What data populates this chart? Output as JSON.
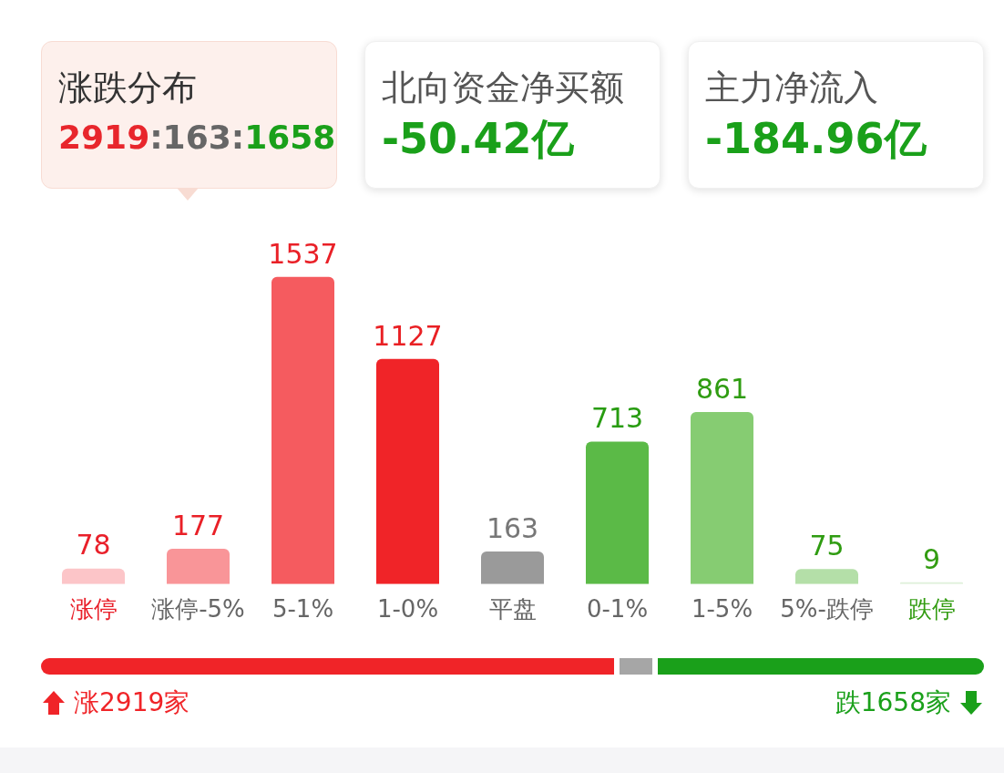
{
  "chart_data": [
    {
      "type": "other",
      "title": "涨跌分布",
      "annotations": [
        "2919:163:1658"
      ]
    },
    {
      "type": "other",
      "title": "北向资金净买额",
      "annotations": [
        "-50.42亿"
      ]
    },
    {
      "type": "other",
      "title": "主力净流入",
      "annotations": [
        "-184.96亿"
      ]
    },
    {
      "type": "bar",
      "categories": [
        "涨停",
        "涨停-5%",
        "5-1%",
        "1-0%",
        "平盘",
        "0-1%",
        "1-5%",
        "5%-跌停",
        "跌停"
      ],
      "values": [
        78,
        177,
        1537,
        1127,
        163,
        713,
        861,
        75,
        9
      ],
      "colors": [
        "#fcc5c8",
        "#f99598",
        "#f55b5f",
        "#f02428",
        "#9a9a9a",
        "#5bba47",
        "#86cc72",
        "#b4dfa8",
        "#dff0da"
      ],
      "data_labels": true,
      "grid": false
    },
    {
      "type": "other",
      "annotations": [
        "涨2919家",
        "跌1658家"
      ]
    }
  ]
}
